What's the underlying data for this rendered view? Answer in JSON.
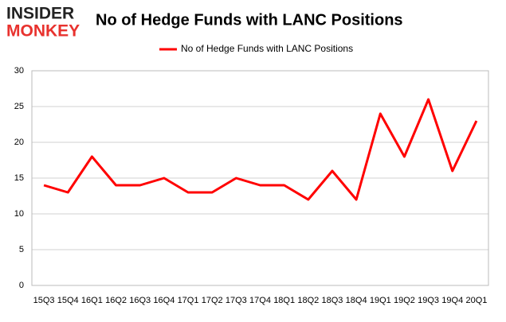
{
  "logo": {
    "line1": "INSIDER",
    "line2": "MONKEY"
  },
  "chart_data": {
    "type": "line",
    "title": "No of Hedge Funds with LANC Positions",
    "categories": [
      "15Q3",
      "15Q4",
      "16Q1",
      "16Q2",
      "16Q3",
      "16Q4",
      "17Q1",
      "17Q2",
      "17Q3",
      "17Q4",
      "18Q1",
      "18Q2",
      "18Q3",
      "18Q4",
      "19Q1",
      "19Q2",
      "19Q3",
      "19Q4",
      "20Q1"
    ],
    "series": [
      {
        "name": "No of Hedge Funds with LANC Positions",
        "color": "#ff0000",
        "values": [
          14,
          13,
          18,
          14,
          14,
          15,
          13,
          13,
          15,
          14,
          14,
          12,
          16,
          12,
          24,
          18,
          26,
          16,
          23
        ]
      }
    ],
    "ylim": [
      0,
      30
    ],
    "yticks": [
      0,
      5,
      10,
      15,
      20,
      25,
      30
    ],
    "grid": true
  }
}
